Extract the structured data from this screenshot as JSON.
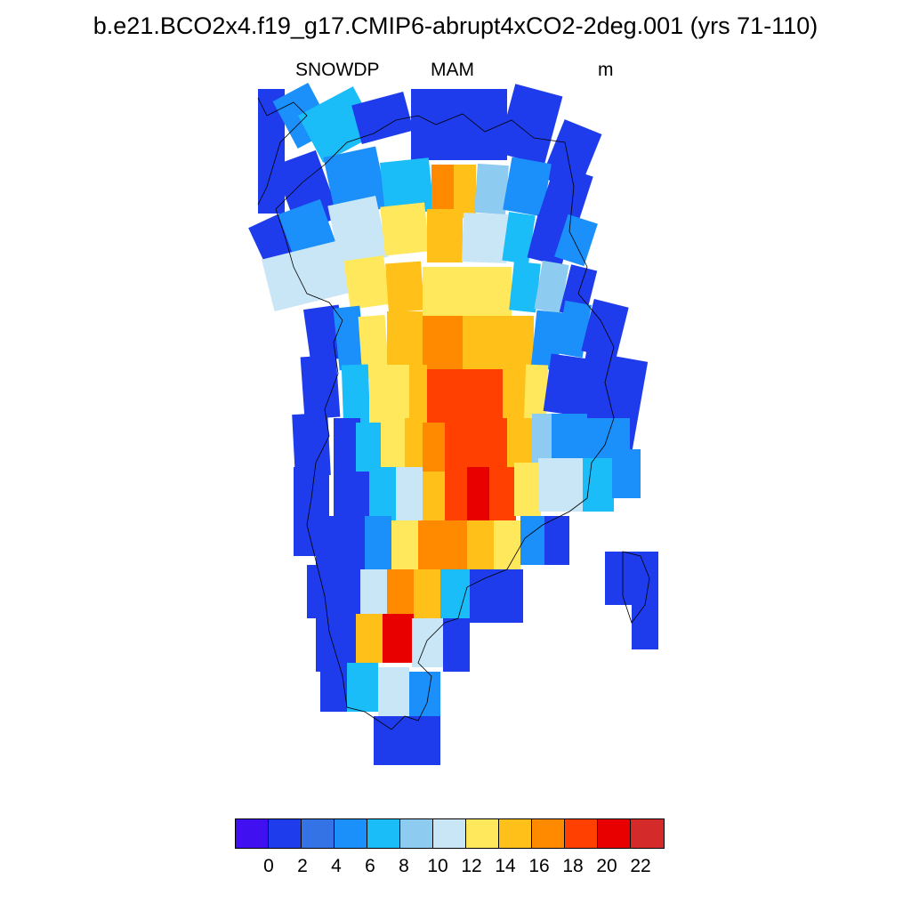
{
  "title": "b.e21.BCO2x4.f19_g17.CMIP6-abrupt4xCO2-2deg.001 (yrs 71-110)",
  "variable": "SNOWDP",
  "season": "MAM",
  "units": "m",
  "colorbar": {
    "colors": [
      "#4010f0",
      "#1e3ceb",
      "#3473e6",
      "#1b90fa",
      "#1bbdf9",
      "#8dcbf0",
      "#c8e6f5",
      "#ffe85c",
      "#ffc01a",
      "#ff8a00",
      "#ff4000",
      "#e80000",
      "#d42a2a"
    ],
    "labels": [
      "0",
      "2",
      "4",
      "6",
      "8",
      "10",
      "12",
      "14",
      "16",
      "18",
      "20",
      "22"
    ]
  },
  "chart_data": {
    "type": "heatmap",
    "title": "b.e21.BCO2x4.f19_g17.CMIP6-abrupt4xCO2-2deg.001 (yrs 71-110)",
    "variable": "SNOWDP",
    "season": "MAM",
    "units": "m",
    "levels": [
      0,
      2,
      4,
      6,
      8,
      10,
      12,
      14,
      16,
      18,
      20,
      22
    ],
    "colors": [
      "#4010f0",
      "#1e3ceb",
      "#3473e6",
      "#1b90fa",
      "#1bbdf9",
      "#8dcbf0",
      "#c8e6f5",
      "#ffe85c",
      "#ffc01a",
      "#ff8a00",
      "#ff4000",
      "#e80000",
      "#d42a2a"
    ]
  }
}
